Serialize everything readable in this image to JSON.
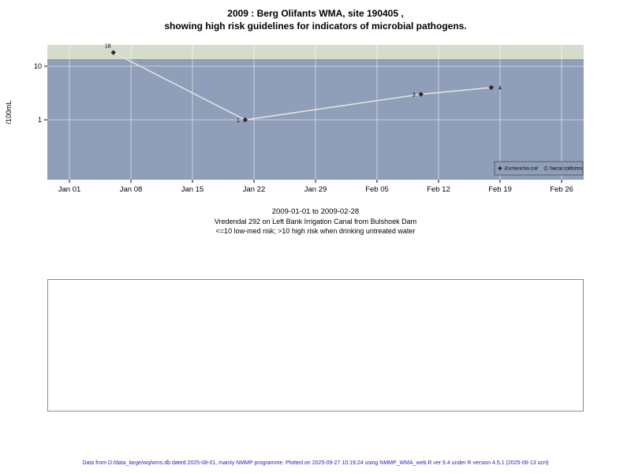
{
  "title": {
    "line1": "2009 : Berg Olifants WMA, site 190405 ,",
    "line2": "showing high risk guidelines for indicators of microbial pathogens."
  },
  "chart_data": {
    "type": "line",
    "title": "2009 : Berg Olifants WMA, site 190405 , showing high risk guidelines for indicators of microbial pathogens.",
    "ylabel": "/100mL",
    "yscale": "log",
    "yticks": [
      10,
      1
    ],
    "ylim": [
      0.4,
      25
    ],
    "x_ticks": [
      "Jan 01",
      "Jan 08",
      "Jan 15",
      "Jan 22",
      "Jan 29",
      "Feb 05",
      "Feb 12",
      "Feb 19",
      "Feb 26"
    ],
    "x_tick_days": [
      0,
      7,
      14,
      21,
      28,
      35,
      42,
      49,
      56
    ],
    "grid": true,
    "legend_position": "bottom-right-inside",
    "high_risk_threshold": 10,
    "series": [
      {
        "name": "Escherichia coli",
        "marker": "diamond",
        "points": [
          {
            "date": "2009-01-06",
            "day": 5,
            "value": 18,
            "label": "18",
            "label_side": "above"
          },
          {
            "date": "2009-01-21",
            "day": 20,
            "value": 1,
            "label": "1",
            "label_side": "left"
          },
          {
            "date": "2009-02-10",
            "day": 40,
            "value": 3,
            "label": "3",
            "label_side": "left"
          },
          {
            "date": "2009-02-18",
            "day": 48,
            "value": 4,
            "label": "4",
            "label_side": "right"
          }
        ]
      },
      {
        "name": "faecal coliforms",
        "marker": "circle",
        "points": []
      }
    ],
    "legend": [
      {
        "label": "Escherichia coli",
        "marker": "diamond",
        "italic": true
      },
      {
        "label": "faecal coliforms",
        "marker": "circle",
        "italic": false
      }
    ],
    "colors": {
      "plot_bg": "#8f9eb9",
      "band": "#d6dccb",
      "line": "#e2e2e2",
      "marker": "#2b2b2b",
      "grid": "#ffffff",
      "axis_text": "#000000"
    }
  },
  "caption": {
    "line1": "2009-01-01 to 2009-02-28",
    "line2": "Vredendal 292 on Left Bank Irrigation Canal from Bulshoek Dam",
    "line3": "<=10 low-med risk; >10 high risk when drinking untreated water"
  },
  "footer": {
    "text": "Data from D:/data_large/wq/wms.db dated 2025-08-01, mainly NMMP programme. Plotted on 2025-09-27 10:19:24 using NMMP_WMA_web.R ver 9.4 under R version 4.5.1 (2025-06-13 ucrt)"
  }
}
